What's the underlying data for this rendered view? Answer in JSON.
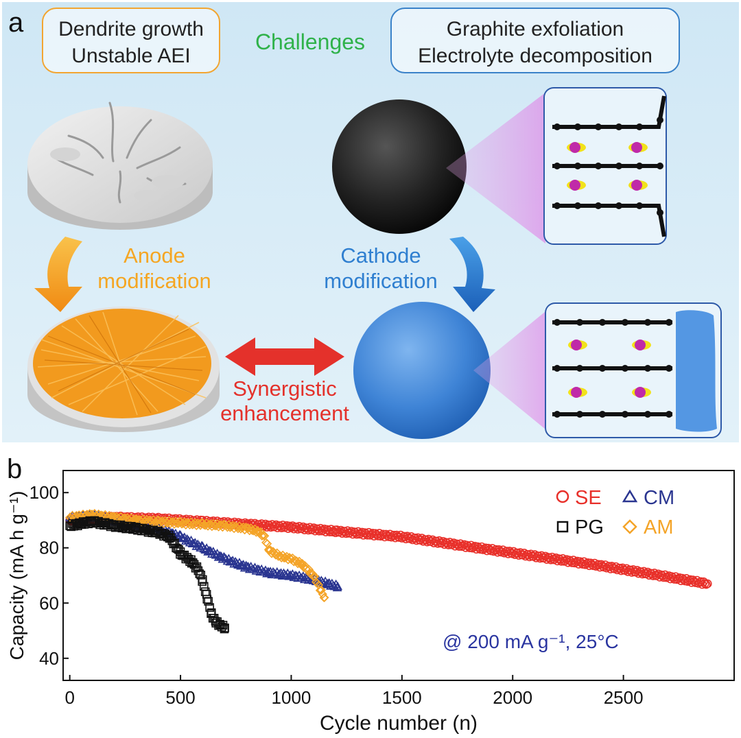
{
  "panel_a": {
    "label": "a",
    "challenges_title": "Challenges",
    "anode_challenges": [
      "Dendrite growth",
      "Unstable AEI"
    ],
    "cathode_challenges": [
      "Graphite exfoliation",
      "Electrolyte decomposition"
    ],
    "anode_modification": [
      "Anode",
      "modification"
    ],
    "cathode_modification": [
      "Cathode",
      "modification"
    ],
    "synergy": [
      "Synergistic",
      "enhancement"
    ],
    "colors": {
      "background": "#d6ecf7",
      "challenges_green": "#2fb24a",
      "anode_orange": "#f5a623",
      "cathode_blue": "#2f7fd0",
      "synergy_red": "#e4312b"
    }
  },
  "panel_b": {
    "label": "b",
    "annotation": "@ 200 mA g⁻¹, 25°C"
  },
  "chart_data": {
    "type": "scatter",
    "xlabel": "Cycle number (n)",
    "ylabel": "Capacity (mA h g⁻¹)",
    "xlim": [
      -30,
      3000
    ],
    "ylim": [
      32,
      108
    ],
    "xticks": [
      0,
      500,
      1000,
      1500,
      2000,
      2500
    ],
    "yticks": [
      40,
      60,
      80,
      100
    ],
    "legend_placement": "top-right",
    "series": [
      {
        "name": "SE",
        "marker": "circle",
        "color": "#e8302a",
        "x": [
          0,
          200,
          400,
          600,
          800,
          1000,
          1200,
          1500,
          1800,
          2100,
          2400,
          2700,
          2880
        ],
        "y": [
          90,
          91,
          90.5,
          89.5,
          88.5,
          87.5,
          86,
          84,
          80.5,
          77,
          73.5,
          69.5,
          67
        ]
      },
      {
        "name": "CM",
        "marker": "triangle",
        "color": "#2a3590",
        "x": [
          0,
          100,
          200,
          300,
          400,
          500,
          600,
          700,
          800,
          900,
          1000,
          1100,
          1210
        ],
        "y": [
          91,
          91.5,
          90,
          88.5,
          87,
          84,
          80,
          76,
          73,
          71,
          70,
          68.5,
          66
        ]
      },
      {
        "name": "PG",
        "marker": "square",
        "color": "#111111",
        "x": [
          0,
          100,
          200,
          300,
          400,
          450,
          500,
          550,
          580,
          600,
          620,
          640,
          660,
          680,
          700
        ],
        "y": [
          88,
          89.5,
          88,
          87,
          85.5,
          84,
          78,
          75,
          72,
          68,
          62,
          56,
          53,
          52,
          51
        ]
      },
      {
        "name": "AM",
        "marker": "diamond",
        "color": "#f4a428",
        "x": [
          0,
          100,
          200,
          300,
          400,
          500,
          600,
          700,
          800,
          850,
          880,
          900,
          950,
          1000,
          1050,
          1100,
          1150
        ],
        "y": [
          91,
          92,
          91,
          90,
          89.5,
          89,
          88.5,
          88,
          87,
          86,
          84,
          79,
          77,
          76,
          74,
          70,
          62
        ]
      }
    ]
  }
}
